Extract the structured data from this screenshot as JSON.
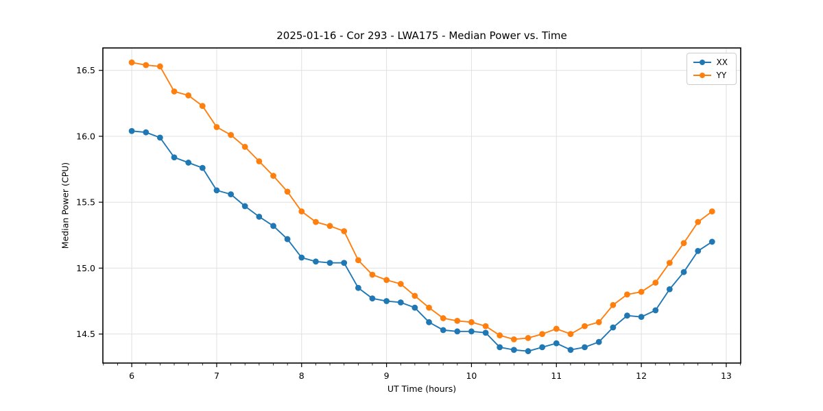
{
  "chart_data": {
    "type": "line",
    "title": "2025-01-16 - Cor 293 - LWA175 - Median Power vs. Time",
    "xlabel": "UT Time (hours)",
    "ylabel": "Median Power (CPU)",
    "xlim": [
      5.66,
      13.17
    ],
    "ylim": [
      14.28,
      16.67
    ],
    "x_ticks": [
      6,
      7,
      8,
      9,
      10,
      11,
      12,
      13
    ],
    "y_ticks": [
      14.5,
      15.0,
      15.5,
      16.0,
      16.5
    ],
    "x_minor_interval_hours": 0.1667,
    "grid": true,
    "legend_position": "upper right",
    "marker": "circle",
    "colors": {
      "grid": "#e0e0e0",
      "spine": "#000000",
      "text": "#000000"
    },
    "x": [
      6.0,
      6.167,
      6.333,
      6.5,
      6.667,
      6.833,
      7.0,
      7.167,
      7.333,
      7.5,
      7.667,
      7.833,
      8.0,
      8.167,
      8.333,
      8.5,
      8.667,
      8.833,
      9.0,
      9.167,
      9.333,
      9.5,
      9.667,
      9.833,
      10.0,
      10.167,
      10.333,
      10.5,
      10.667,
      10.833,
      11.0,
      11.167,
      11.333,
      11.5,
      11.667,
      11.833,
      12.0,
      12.167,
      12.333,
      12.5,
      12.667,
      12.833
    ],
    "series": [
      {
        "name": "XX",
        "color": "#1f77b4",
        "values": [
          16.04,
          16.03,
          15.99,
          15.84,
          15.8,
          15.76,
          15.59,
          15.56,
          15.47,
          15.39,
          15.32,
          15.22,
          15.08,
          15.05,
          15.04,
          15.04,
          14.85,
          14.77,
          14.75,
          14.74,
          14.7,
          14.59,
          14.53,
          14.52,
          14.52,
          14.51,
          14.4,
          14.38,
          14.37,
          14.4,
          14.43,
          14.38,
          14.4,
          14.44,
          14.55,
          14.64,
          14.63,
          14.68,
          14.84,
          14.97,
          15.13,
          15.2
        ]
      },
      {
        "name": "YY",
        "color": "#ff7f0e",
        "values": [
          16.56,
          16.54,
          16.53,
          16.34,
          16.31,
          16.23,
          16.07,
          16.01,
          15.92,
          15.81,
          15.7,
          15.58,
          15.43,
          15.35,
          15.32,
          15.28,
          15.06,
          14.95,
          14.91,
          14.88,
          14.79,
          14.7,
          14.62,
          14.6,
          14.59,
          14.56,
          14.49,
          14.46,
          14.47,
          14.5,
          14.54,
          14.5,
          14.56,
          14.59,
          14.72,
          14.8,
          14.82,
          14.89,
          15.04,
          15.19,
          15.35,
          15.43
        ]
      }
    ]
  }
}
